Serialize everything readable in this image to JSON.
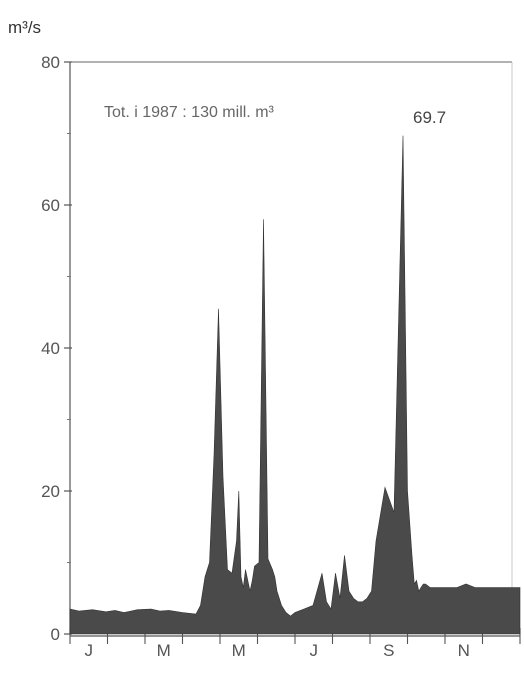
{
  "chart_data": {
    "type": "area",
    "ylabel_unit": "m³/s",
    "ylim": [
      0,
      80
    ],
    "y_ticks": [
      0,
      20,
      40,
      60,
      80
    ],
    "y_tick_labels": [
      "0",
      "20",
      "40",
      "60",
      "80"
    ],
    "month_labels": [
      "J",
      "M",
      "M",
      "J",
      "S",
      "N"
    ],
    "annotation": "Tot. i 1987 : 130 mill. m³",
    "peak_label": "69.7",
    "fill_color": "#4a4a4a",
    "x": [
      0,
      0.02,
      0.05,
      0.08,
      0.1,
      0.12,
      0.15,
      0.18,
      0.2,
      0.22,
      0.25,
      0.28,
      0.29,
      0.3,
      0.31,
      0.32,
      0.33,
      0.34,
      0.35,
      0.36,
      0.37,
      0.375,
      0.38,
      0.385,
      0.39,
      0.4,
      0.405,
      0.41,
      0.42,
      0.43,
      0.44,
      0.45,
      0.455,
      0.46,
      0.47,
      0.48,
      0.49,
      0.5,
      0.52,
      0.54,
      0.56,
      0.57,
      0.58,
      0.59,
      0.6,
      0.61,
      0.62,
      0.63,
      0.64,
      0.65,
      0.66,
      0.67,
      0.68,
      0.7,
      0.72,
      0.74,
      0.75,
      0.76,
      0.765,
      0.77,
      0.775,
      0.78,
      0.785,
      0.79,
      0.8,
      0.82,
      0.84,
      0.86,
      0.88,
      0.9,
      0.93,
      0.96,
      1.0
    ],
    "values": [
      3.5,
      3.2,
      3.4,
      3.1,
      3.3,
      3.0,
      3.4,
      3.5,
      3.2,
      3.3,
      3.0,
      2.8,
      4.0,
      8.0,
      10.0,
      25.0,
      45.5,
      22.0,
      9.0,
      8.5,
      13.0,
      20.0,
      8.0,
      6.5,
      9.0,
      6.0,
      7.5,
      9.5,
      10.0,
      58.0,
      10.5,
      9.0,
      8.0,
      6.0,
      4.0,
      3.0,
      2.5,
      3.0,
      3.5,
      4.0,
      8.5,
      4.5,
      3.5,
      8.5,
      5.0,
      11.0,
      6.0,
      5.0,
      4.5,
      4.5,
      5.0,
      6.0,
      13.0,
      20.5,
      17.0,
      69.7,
      20.0,
      11.0,
      7.0,
      7.5,
      6.0,
      6.5,
      7.0,
      7.0,
      6.5,
      6.5,
      6.5,
      6.5,
      7.0,
      6.5,
      6.5,
      6.5,
      6.5
    ]
  }
}
